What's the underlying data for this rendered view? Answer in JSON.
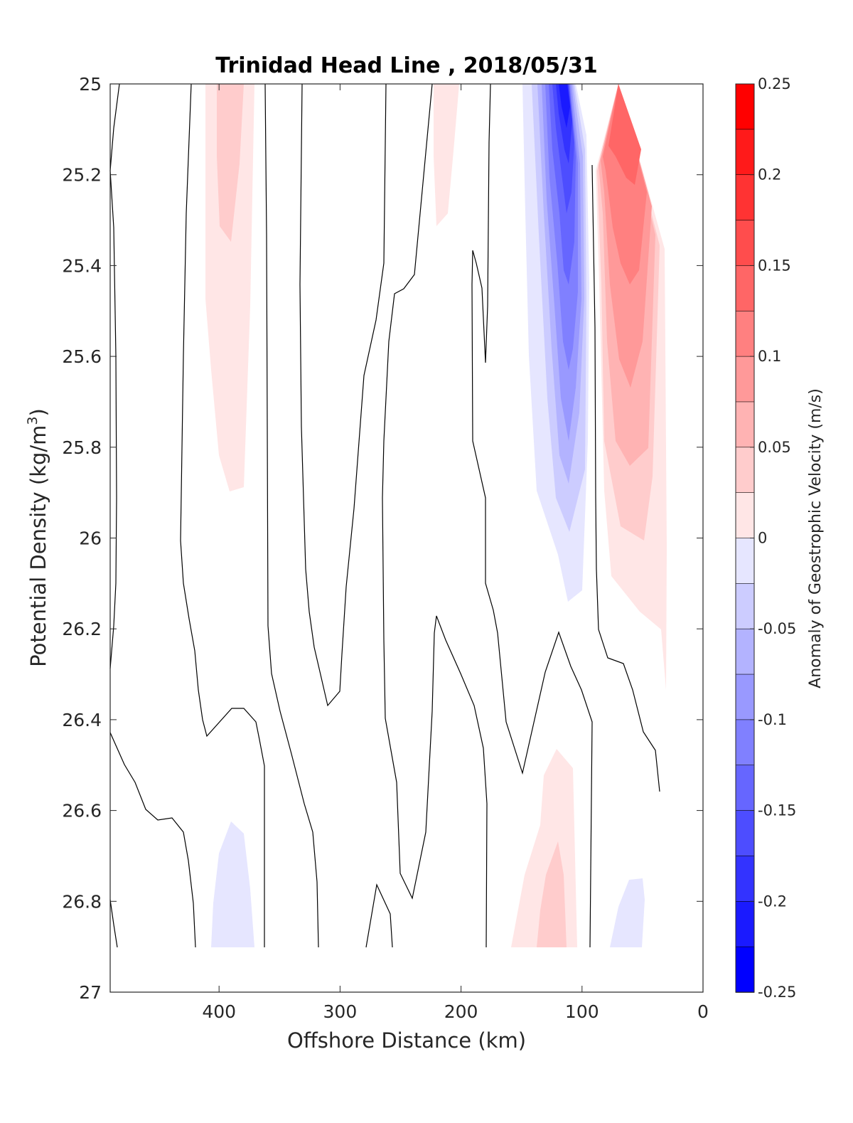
{
  "chart_data": {
    "type": "contour",
    "title": "Trinidad Head Line , 2018/05/31",
    "xlabel": "Offshore Distance (km)",
    "ylabel_main": "Potential Density (kg/m",
    "ylabel_sup": "3",
    "ylabel_close": ")",
    "colorbar_label": "Anomaly of Geostrophic Velocity (m/s)",
    "x_axis": {
      "range": [
        490,
        0
      ],
      "reversed": true,
      "ticks": [
        400,
        300,
        200,
        100,
        0
      ]
    },
    "y_axis": {
      "range": [
        25,
        27
      ],
      "reversed": true,
      "ticks": [
        25,
        25.2,
        25.4,
        25.6,
        25.8,
        26,
        26.2,
        26.4,
        26.6,
        26.8,
        27
      ]
    },
    "colorbar": {
      "range": [
        -0.25,
        0.25
      ],
      "ticks": [
        0.25,
        0.2,
        0.15,
        0.1,
        0.05,
        0,
        -0.05,
        -0.1,
        -0.15,
        -0.2,
        -0.25
      ],
      "tick_labels": [
        "0.25",
        "0.2",
        "0.15",
        "0.1",
        "0.05",
        "0",
        "-0.05",
        "-0.1",
        "-0.15",
        "-0.2",
        "-0.25"
      ],
      "levels": [
        -0.25,
        -0.225,
        -0.2,
        -0.175,
        -0.15,
        -0.125,
        -0.1,
        -0.075,
        -0.05,
        -0.025,
        0.025,
        0.05,
        0.075,
        0.1,
        0.125,
        0.15,
        0.175,
        0.2,
        0.225,
        0.25
      ],
      "colors_top_to_bottom": [
        "#ff0000",
        "#ff1a1a",
        "#ff3333",
        "#ff4d4d",
        "#ff6666",
        "#ff8080",
        "#ff9999",
        "#ffb3b3",
        "#ffcccc",
        "#ffe6e6",
        "#ffffff",
        "#ffffff",
        "#e6e6ff",
        "#ccccff",
        "#b3b3ff",
        "#9999ff",
        "#8080ff",
        "#6666ff",
        "#4d4dff",
        "#3333ff",
        "#1a1aff",
        "#0000ff"
      ]
    },
    "data_extent": {
      "x": [
        490,
        30
      ],
      "y": [
        25,
        26.9
      ]
    },
    "features": [
      {
        "name": "offshore positive anomaly",
        "x_center": 390,
        "y_range": [
          25,
          25.9
        ],
        "peak_value": 0.05
      },
      {
        "name": "mid positive anomaly",
        "x_center": 220,
        "y_range": [
          25,
          25.3
        ],
        "peak_value": 0.025
      },
      {
        "name": "nearshore negative jet",
        "x_center": 110,
        "y_range": [
          25,
          26.15
        ],
        "peak_value": -0.25
      },
      {
        "name": "nearshore positive jet",
        "x_center": 70,
        "y_range": [
          25,
          26.35
        ],
        "peak_value": 0.175
      },
      {
        "name": "deep positive anomaly",
        "x_center": 120,
        "y_range": [
          26.46,
          26.9
        ],
        "peak_value": 0.05
      },
      {
        "name": "deep negative anomaly offshore",
        "x_center": 390,
        "y_range": [
          26.62,
          26.9
        ],
        "peak_value": -0.025
      },
      {
        "name": "deep negative anomaly nearshore",
        "x_center": 55,
        "y_range": [
          26.75,
          26.9
        ],
        "peak_value": -0.025
      }
    ]
  }
}
